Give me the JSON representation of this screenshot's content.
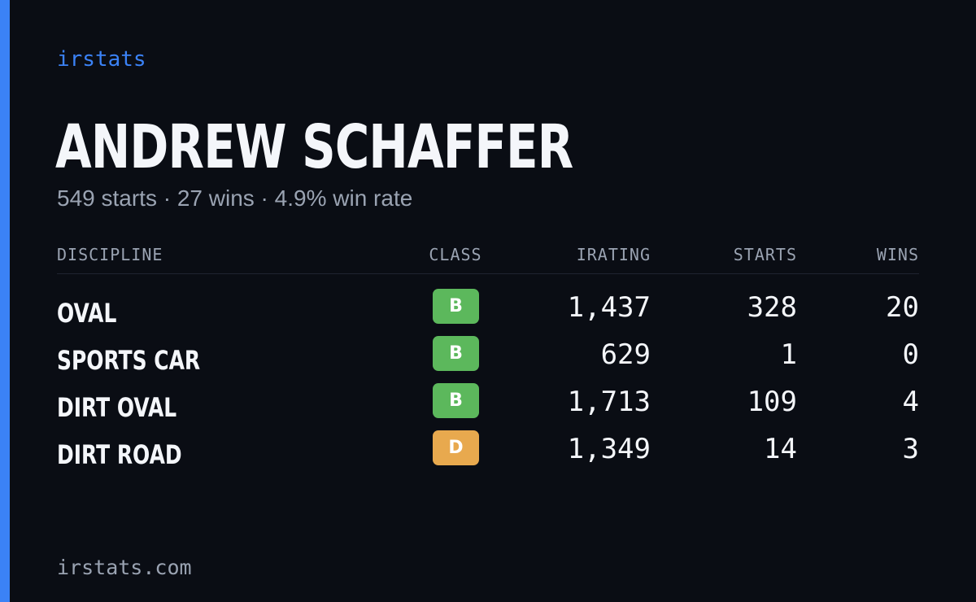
{
  "brand": "irstats",
  "player": {
    "name": "ANDREW SCHAFFER",
    "summary": "549 starts · 27 wins · 4.9% win rate"
  },
  "table": {
    "headers": {
      "discipline": "DISCIPLINE",
      "class": "CLASS",
      "irating": "IRATING",
      "starts": "STARTS",
      "wins": "WINS"
    },
    "rows": [
      {
        "discipline": "OVAL",
        "class": "B",
        "class_color": "#5cb85c",
        "irating": "1,437",
        "starts": "328",
        "wins": "20"
      },
      {
        "discipline": "SPORTS CAR",
        "class": "B",
        "class_color": "#5cb85c",
        "irating": "629",
        "starts": "1",
        "wins": "0"
      },
      {
        "discipline": "DIRT OVAL",
        "class": "B",
        "class_color": "#5cb85c",
        "irating": "1,713",
        "starts": "109",
        "wins": "4"
      },
      {
        "discipline": "DIRT ROAD",
        "class": "D",
        "class_color": "#e8a94e",
        "irating": "1,349",
        "starts": "14",
        "wins": "3"
      }
    ]
  },
  "footer": {
    "url": "irstats.com"
  },
  "colors": {
    "background": "#0a0d14",
    "accent": "#3b82f6",
    "muted": "#9aa3b2",
    "text": "#f4f6fa"
  }
}
